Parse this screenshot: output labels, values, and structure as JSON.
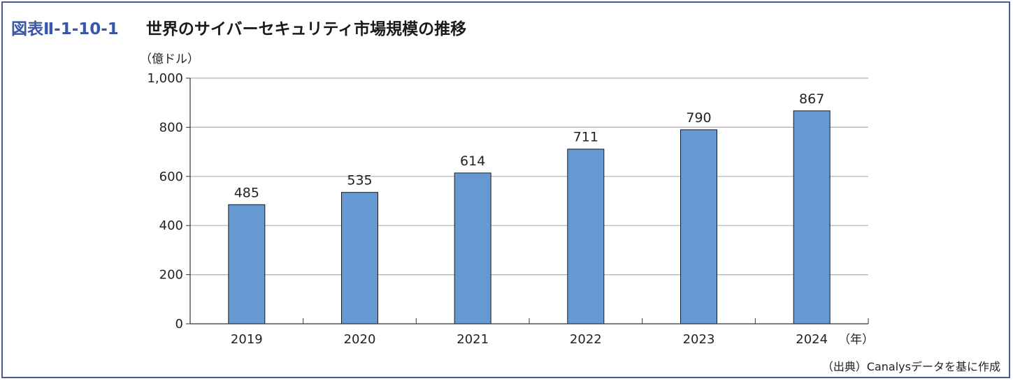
{
  "figure": {
    "id": "図表Ⅱ-1-10-1",
    "title": "世界のサイバーセキュリティ市場規模の推移",
    "source": "（出典）Canalysデータを基に作成"
  },
  "chart_data": {
    "type": "bar",
    "ylabel": "（億ドル）",
    "xunit": "（年）",
    "categories": [
      "2019",
      "2020",
      "2021",
      "2022",
      "2023",
      "2024"
    ],
    "values": [
      485,
      535,
      614,
      711,
      790,
      867
    ],
    "ylim": [
      0,
      1000
    ],
    "yticks": [
      0,
      200,
      400,
      600,
      800,
      1000
    ],
    "ytick_labels": [
      "0",
      "200",
      "400",
      "600",
      "800",
      "1,000"
    ],
    "grid": true,
    "bar_color": "#6699d1"
  }
}
